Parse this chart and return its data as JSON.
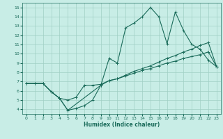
{
  "xlabel": "Humidex (Indice chaleur)",
  "bg_color": "#c8ede6",
  "grid_color": "#a0cfc4",
  "line_color": "#1a6b5a",
  "xlim": [
    -0.5,
    23.5
  ],
  "ylim": [
    3.5,
    15.5
  ],
  "xticks": [
    0,
    1,
    2,
    3,
    4,
    5,
    6,
    7,
    8,
    9,
    10,
    11,
    12,
    13,
    14,
    15,
    16,
    17,
    18,
    19,
    20,
    21,
    22,
    23
  ],
  "yticks": [
    4,
    5,
    6,
    7,
    8,
    9,
    10,
    11,
    12,
    13,
    14,
    15
  ],
  "line1_x": [
    0,
    1,
    2,
    3,
    4,
    5,
    6,
    7,
    8,
    9,
    10,
    11,
    12,
    13,
    14,
    15,
    16,
    17,
    18,
    19,
    20,
    21,
    22,
    23
  ],
  "line1_y": [
    6.8,
    6.8,
    6.8,
    5.9,
    5.2,
    5.0,
    5.3,
    6.6,
    6.6,
    6.7,
    7.1,
    7.3,
    7.6,
    7.9,
    8.2,
    8.4,
    8.7,
    9.0,
    9.2,
    9.5,
    9.7,
    9.9,
    10.2,
    8.6
  ],
  "line2_x": [
    0,
    1,
    2,
    3,
    4,
    5,
    6,
    7,
    8,
    9,
    10,
    11,
    12,
    13,
    14,
    15,
    16,
    17,
    18,
    19,
    20,
    21,
    22,
    23
  ],
  "line2_y": [
    6.8,
    6.8,
    6.8,
    5.9,
    5.2,
    3.9,
    4.1,
    4.4,
    5.0,
    6.6,
    9.5,
    9.0,
    12.8,
    13.3,
    14.0,
    15.0,
    14.0,
    11.1,
    14.5,
    12.5,
    11.0,
    10.5,
    9.3,
    8.6
  ],
  "line3_x": [
    0,
    2,
    3,
    4,
    5,
    9,
    10,
    11,
    12,
    13,
    14,
    15,
    16,
    17,
    18,
    19,
    20,
    21,
    22,
    23
  ],
  "line3_y": [
    6.8,
    6.8,
    5.9,
    5.2,
    3.9,
    6.6,
    7.1,
    7.3,
    7.7,
    8.1,
    8.4,
    8.7,
    9.1,
    9.5,
    9.8,
    10.2,
    10.5,
    10.9,
    11.2,
    8.6
  ]
}
